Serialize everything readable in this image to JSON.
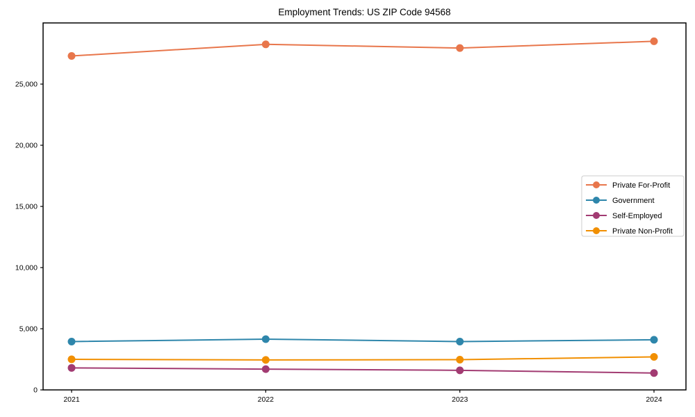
{
  "figure": {
    "background": "#ffffff",
    "axis_color": "#000000",
    "legend_border_color": "#cccccc"
  },
  "chart_data": {
    "type": "line",
    "title": "Employment Trends: US ZIP Code 94568",
    "xlabel": "",
    "ylabel": "",
    "categories": [
      "2021",
      "2022",
      "2023",
      "2024"
    ],
    "x_tick_labels": [
      "2021",
      "2022",
      "2023",
      "2024"
    ],
    "y_ticks": [
      0,
      5000,
      10000,
      15000,
      20000,
      25000
    ],
    "y_tick_labels": [
      "0",
      "5,000",
      "10,000",
      "15,000",
      "20,000",
      "25,000"
    ],
    "ylim": [
      0,
      30000
    ],
    "grid": false,
    "legend_position": "center-right",
    "series": [
      {
        "name": "Private For-Profit",
        "color": "#E8764B",
        "values": [
          27300,
          28250,
          27950,
          28500
        ]
      },
      {
        "name": "Government",
        "color": "#2E86AB",
        "values": [
          3950,
          4150,
          3950,
          4100
        ]
      },
      {
        "name": "Self-Employed",
        "color": "#A23B72",
        "values": [
          1800,
          1700,
          1600,
          1380
        ]
      },
      {
        "name": "Private Non-Profit",
        "color": "#F18F01",
        "values": [
          2500,
          2450,
          2470,
          2700
        ]
      }
    ]
  }
}
